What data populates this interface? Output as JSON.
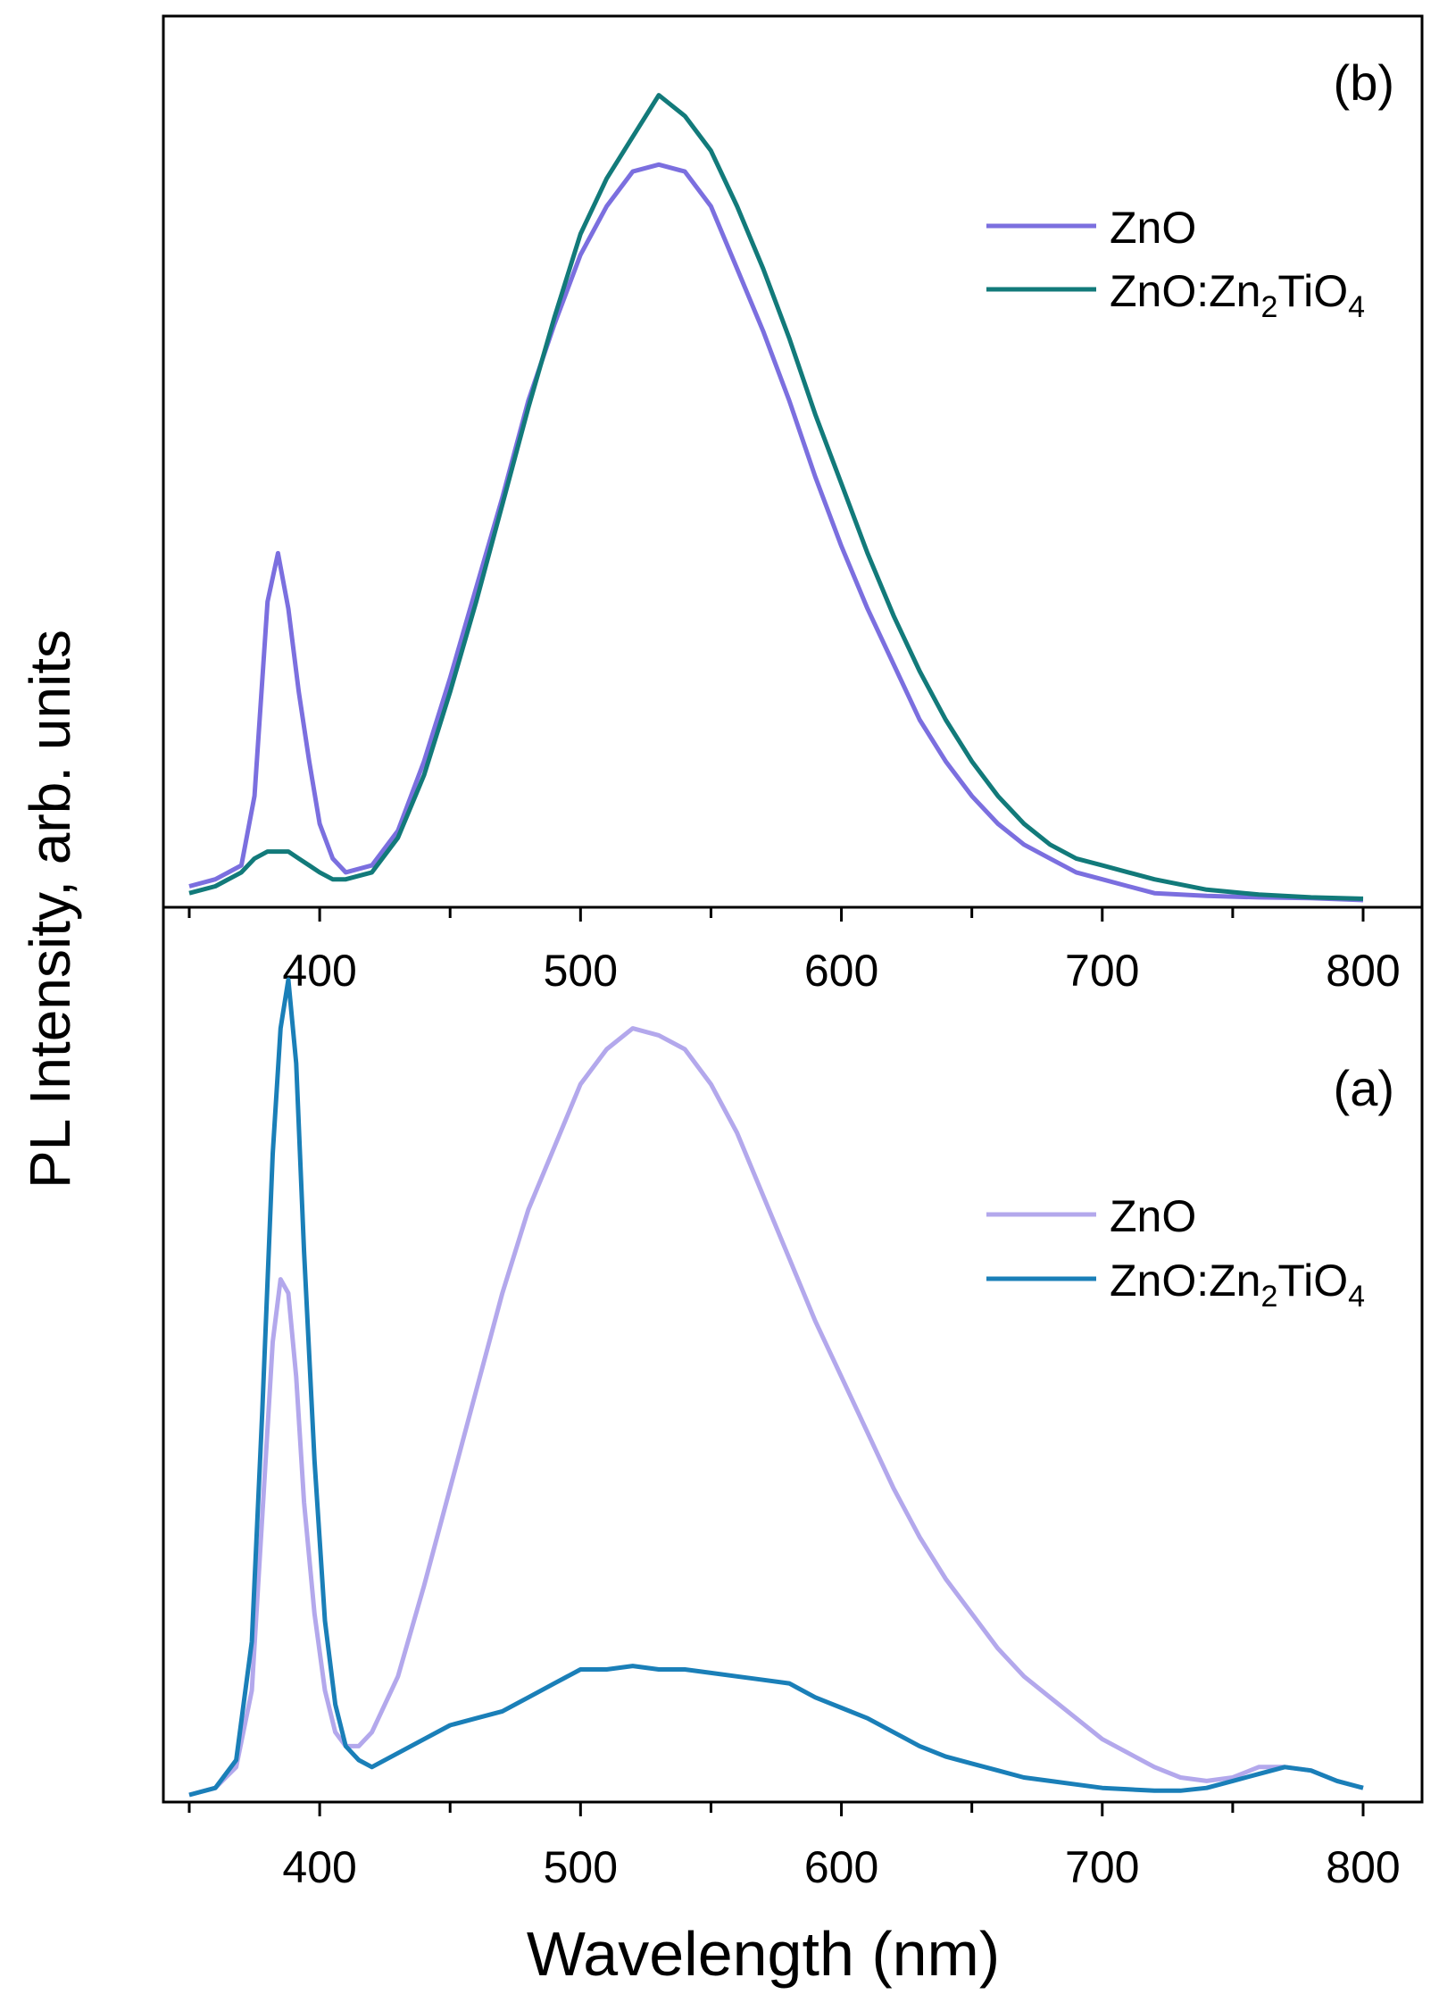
{
  "figure": {
    "ylabel": "PL Intensity, arb. units",
    "xlabel": "Wavelength (nm)"
  },
  "chart_data": [
    {
      "type": "line",
      "panel_label": "(b)",
      "xlim": [
        350,
        800
      ],
      "x_ticks": [
        400,
        500,
        600,
        700,
        800
      ],
      "x_tick_labels": [
        "400",
        "500",
        "600",
        "700",
        "800"
      ],
      "y_ticks": false,
      "legend_position": "top-right",
      "grid": false,
      "ylim": [
        0,
        1.22
      ],
      "series": [
        {
          "name": "ZnO",
          "legend_main": "ZnO",
          "legend_sub1": "",
          "legend_mid": "",
          "legend_sub2": "",
          "color": "#7b6fdf",
          "x": [
            350,
            360,
            370,
            375,
            380,
            384,
            388,
            392,
            396,
            400,
            405,
            410,
            420,
            430,
            440,
            450,
            460,
            470,
            480,
            490,
            500,
            510,
            520,
            530,
            540,
            550,
            560,
            570,
            580,
            590,
            600,
            610,
            620,
            630,
            640,
            650,
            660,
            670,
            680,
            690,
            700,
            710,
            720,
            740,
            760,
            780,
            800
          ],
          "y": [
            0.02,
            0.03,
            0.05,
            0.15,
            0.43,
            0.5,
            0.42,
            0.3,
            0.2,
            0.11,
            0.06,
            0.04,
            0.05,
            0.1,
            0.2,
            0.32,
            0.45,
            0.58,
            0.72,
            0.83,
            0.93,
            1.0,
            1.05,
            1.06,
            1.05,
            1.0,
            0.91,
            0.82,
            0.72,
            0.61,
            0.51,
            0.42,
            0.34,
            0.26,
            0.2,
            0.15,
            0.11,
            0.08,
            0.06,
            0.04,
            0.03,
            0.02,
            0.01,
            0.006,
            0.004,
            0.003,
            0.0
          ]
        },
        {
          "name": "ZnO:Zn2TiO4",
          "legend_main": "ZnO:Zn",
          "legend_sub1": "2",
          "legend_mid": "TiO",
          "legend_sub2": "4",
          "color": "#127a7a",
          "x": [
            350,
            360,
            370,
            375,
            380,
            384,
            388,
            392,
            396,
            400,
            405,
            410,
            420,
            430,
            440,
            450,
            460,
            470,
            480,
            490,
            500,
            510,
            520,
            530,
            540,
            550,
            560,
            570,
            580,
            590,
            600,
            610,
            620,
            630,
            640,
            650,
            660,
            670,
            680,
            690,
            700,
            710,
            720,
            740,
            760,
            780,
            800
          ],
          "y": [
            0.01,
            0.02,
            0.04,
            0.06,
            0.07,
            0.07,
            0.07,
            0.06,
            0.05,
            0.04,
            0.03,
            0.03,
            0.04,
            0.09,
            0.18,
            0.3,
            0.43,
            0.57,
            0.71,
            0.84,
            0.96,
            1.04,
            1.1,
            1.16,
            1.13,
            1.08,
            1.0,
            0.91,
            0.81,
            0.7,
            0.6,
            0.5,
            0.41,
            0.33,
            0.26,
            0.2,
            0.15,
            0.11,
            0.08,
            0.06,
            0.05,
            0.04,
            0.03,
            0.015,
            0.008,
            0.004,
            0.002
          ]
        }
      ]
    },
    {
      "type": "line",
      "panel_label": "(a)",
      "xlim": [
        350,
        800
      ],
      "x_ticks": [
        400,
        500,
        600,
        700,
        800
      ],
      "x_tick_labels": [
        "400",
        "500",
        "600",
        "700",
        "800"
      ],
      "y_ticks": false,
      "legend_position": "top-right",
      "grid": false,
      "ylim": [
        0,
        1.22
      ],
      "series": [
        {
          "name": "ZnO",
          "legend_main": "ZnO",
          "legend_sub1": "",
          "legend_mid": "",
          "legend_sub2": "",
          "color": "#b3a8ec",
          "x": [
            350,
            360,
            368,
            374,
            378,
            382,
            385,
            388,
            391,
            394,
            398,
            402,
            406,
            410,
            415,
            420,
            430,
            440,
            450,
            460,
            470,
            480,
            490,
            500,
            510,
            520,
            530,
            540,
            550,
            560,
            570,
            580,
            590,
            600,
            610,
            620,
            630,
            640,
            650,
            660,
            670,
            680,
            690,
            700,
            710,
            720,
            730,
            740,
            750,
            760,
            770,
            780,
            790,
            800
          ],
          "y": [
            0.0,
            0.01,
            0.04,
            0.15,
            0.4,
            0.65,
            0.74,
            0.72,
            0.6,
            0.42,
            0.26,
            0.15,
            0.09,
            0.07,
            0.07,
            0.09,
            0.17,
            0.3,
            0.44,
            0.58,
            0.72,
            0.84,
            0.93,
            1.02,
            1.07,
            1.1,
            1.09,
            1.07,
            1.02,
            0.95,
            0.86,
            0.77,
            0.68,
            0.6,
            0.52,
            0.44,
            0.37,
            0.31,
            0.26,
            0.21,
            0.17,
            0.14,
            0.11,
            0.08,
            0.06,
            0.04,
            0.025,
            0.02,
            0.025,
            0.04,
            0.04,
            0.035,
            0.02,
            0.01
          ]
        },
        {
          "name": "ZnO:Zn2TiO4",
          "legend_main": "ZnO:Zn",
          "legend_sub1": "2",
          "legend_mid": "TiO",
          "legend_sub2": "4",
          "color": "#1a7fb8",
          "x": [
            350,
            360,
            368,
            374,
            378,
            382,
            385,
            388,
            391,
            394,
            398,
            402,
            406,
            410,
            415,
            420,
            430,
            440,
            450,
            460,
            470,
            480,
            490,
            500,
            510,
            520,
            530,
            540,
            550,
            560,
            570,
            580,
            590,
            600,
            610,
            620,
            630,
            640,
            650,
            660,
            670,
            680,
            690,
            700,
            710,
            720,
            730,
            740,
            750,
            760,
            770,
            780,
            790,
            800
          ],
          "y": [
            0.0,
            0.01,
            0.05,
            0.22,
            0.55,
            0.92,
            1.1,
            1.17,
            1.05,
            0.78,
            0.48,
            0.25,
            0.13,
            0.07,
            0.05,
            0.04,
            0.06,
            0.08,
            0.1,
            0.11,
            0.12,
            0.14,
            0.16,
            0.18,
            0.18,
            0.185,
            0.18,
            0.18,
            0.175,
            0.17,
            0.165,
            0.16,
            0.14,
            0.125,
            0.11,
            0.09,
            0.07,
            0.055,
            0.045,
            0.035,
            0.025,
            0.02,
            0.015,
            0.01,
            0.008,
            0.006,
            0.006,
            0.01,
            0.02,
            0.03,
            0.04,
            0.035,
            0.02,
            0.01
          ]
        }
      ]
    }
  ]
}
